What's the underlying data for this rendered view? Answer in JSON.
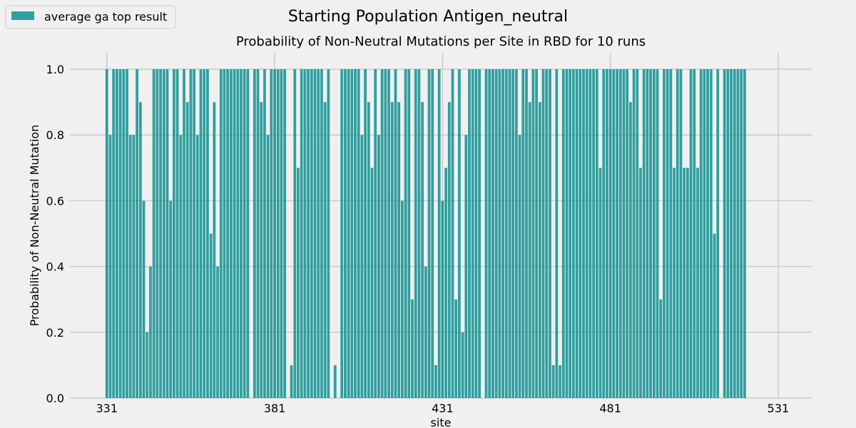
{
  "chart_data": {
    "type": "bar",
    "suptitle": "Starting Population Antigen_neutral",
    "title": "Probability of Non-Neutral Mutations per Site in RBD for 10 runs",
    "xlabel": "site",
    "ylabel": "Probability of Non-Neutral Mutation",
    "xlim": [
      320,
      541
    ],
    "ylim": [
      0,
      1.05
    ],
    "xticks": [
      331,
      381,
      431,
      481,
      531
    ],
    "yticks": [
      0.0,
      0.2,
      0.4,
      0.6,
      0.8,
      1.0
    ],
    "x_start": 331,
    "grid": true,
    "legend_position": "top-left",
    "series": [
      {
        "name": "average ga top result",
        "color": "#008b8b",
        "values": [
          1.0,
          0.8,
          1.0,
          1.0,
          1.0,
          1.0,
          1.0,
          0.8,
          0.8,
          1.0,
          0.9,
          0.6,
          0.2,
          0.4,
          1.0,
          1.0,
          1.0,
          1.0,
          1.0,
          0.6,
          1.0,
          1.0,
          0.8,
          1.0,
          0.9,
          1.0,
          1.0,
          0.8,
          1.0,
          1.0,
          1.0,
          0.5,
          0.9,
          0.4,
          1.0,
          1.0,
          1.0,
          1.0,
          1.0,
          1.0,
          1.0,
          1.0,
          1.0,
          0.0,
          1.0,
          1.0,
          0.9,
          1.0,
          0.8,
          1.0,
          1.0,
          1.0,
          1.0,
          1.0,
          0.0,
          0.1,
          1.0,
          0.7,
          1.0,
          1.0,
          1.0,
          1.0,
          1.0,
          1.0,
          1.0,
          0.9,
          1.0,
          0.0,
          0.1,
          0.0,
          1.0,
          1.0,
          1.0,
          1.0,
          1.0,
          1.0,
          0.8,
          1.0,
          0.9,
          0.7,
          1.0,
          0.8,
          1.0,
          1.0,
          1.0,
          0.9,
          1.0,
          0.9,
          0.6,
          1.0,
          1.0,
          0.3,
          1.0,
          1.0,
          0.9,
          0.4,
          1.0,
          1.0,
          0.1,
          1.0,
          0.6,
          0.7,
          0.9,
          1.0,
          0.3,
          1.0,
          0.2,
          0.8,
          1.0,
          1.0,
          1.0,
          1.0,
          0.0,
          1.0,
          1.0,
          1.0,
          1.0,
          1.0,
          1.0,
          1.0,
          1.0,
          1.0,
          1.0,
          0.8,
          1.0,
          1.0,
          0.9,
          1.0,
          1.0,
          0.9,
          1.0,
          1.0,
          1.0,
          0.1,
          1.0,
          0.1,
          1.0,
          1.0,
          1.0,
          1.0,
          1.0,
          1.0,
          1.0,
          1.0,
          1.0,
          1.0,
          1.0,
          0.7,
          1.0,
          1.0,
          1.0,
          1.0,
          1.0,
          1.0,
          1.0,
          1.0,
          0.9,
          1.0,
          1.0,
          0.7,
          1.0,
          1.0,
          1.0,
          1.0,
          1.0,
          0.3,
          1.0,
          1.0,
          1.0,
          0.7,
          1.0,
          1.0,
          0.7,
          0.7,
          1.0,
          1.0,
          0.7,
          1.0,
          1.0,
          1.0,
          1.0,
          0.5,
          1.0,
          0.0,
          1.0,
          1.0,
          1.0,
          1.0,
          1.0,
          1.0,
          1.0
        ]
      }
    ]
  }
}
